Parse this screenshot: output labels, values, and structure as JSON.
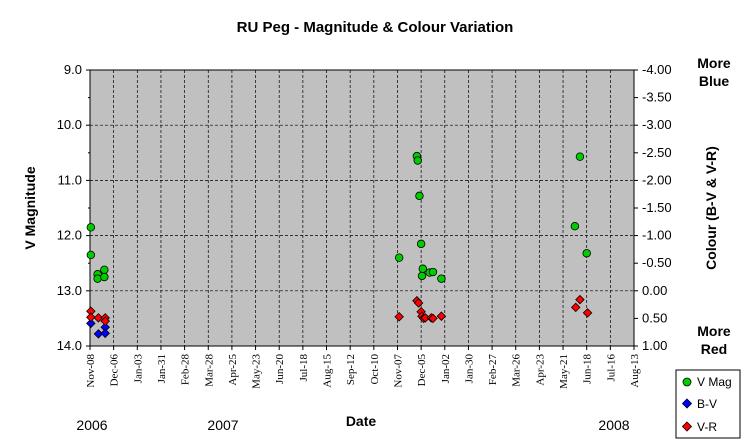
{
  "chart_data": {
    "type": "scatter",
    "title": "RU Peg - Magnitude & Colour Variation",
    "xlabel": "Date",
    "ylabel": "V Magnitude",
    "y2label": "Colour (B-V & V-R)",
    "ylim": [
      9.0,
      14.0
    ],
    "y_reversed": true,
    "yticks": [
      "9.0",
      "10.0",
      "11.0",
      "12.0",
      "13.0",
      "14.0"
    ],
    "y2lim": [
      -4.0,
      1.0
    ],
    "y2_reversed": true,
    "y2ticks": [
      "-4.00",
      "-3.50",
      "-3.00",
      "-2.50",
      "-2.00",
      "-1.50",
      "-1.00",
      "-0.50",
      "0.00",
      "0.50",
      "1.00"
    ],
    "xticks": [
      "Nov-08",
      "Dec-06",
      "Jan-03",
      "Jan-31",
      "Feb-28",
      "Mar-28",
      "Apr-25",
      "May-23",
      "Jun-20",
      "Jul-18",
      "Aug-15",
      "Sep-12",
      "Oct-10",
      "Nov-07",
      "Dec-05",
      "Jan-02",
      "Jan-30",
      "Feb-27",
      "Mar-26",
      "Apr-23",
      "May-21",
      "Jun-18",
      "Jul-16",
      "Aug-13"
    ],
    "years": [
      "2006",
      "2007",
      "2008"
    ],
    "annotations": {
      "top": [
        "More",
        "Blue"
      ],
      "bottom": [
        "More",
        "Red"
      ]
    },
    "grid": true,
    "legend_position": "bottom-right",
    "colors": {
      "plot_bg": "#c0c0c0",
      "v_mag": "#00cc00",
      "b_v": "#0000ff",
      "v_r": "#ff0000"
    },
    "series": [
      {
        "name": "V Mag",
        "axis": "left",
        "marker": "circle",
        "color": "#00cc00",
        "x": [
          1,
          1,
          9,
          9,
          17,
          17,
          366,
          387,
          388,
          390,
          392,
          393,
          394,
          402,
          406,
          416,
          574,
          580,
          588
        ],
        "y": [
          11.85,
          12.35,
          12.7,
          12.78,
          12.62,
          12.75,
          12.4,
          10.56,
          10.64,
          11.28,
          12.15,
          12.73,
          12.6,
          12.67,
          12.66,
          12.78,
          11.83,
          10.57,
          12.32
        ]
      },
      {
        "name": "B-V",
        "axis": "right",
        "marker": "diamond",
        "color": "#0000ff",
        "x": [
          1,
          10,
          18,
          18
        ],
        "y": [
          0.59,
          0.78,
          0.66,
          0.77
        ]
      },
      {
        "name": "V-R",
        "axis": "right",
        "marker": "diamond",
        "color": "#ff0000",
        "x": [
          1,
          1,
          10,
          18,
          18,
          366,
          387,
          389,
          392,
          393,
          395,
          397,
          404,
          406,
          416,
          575,
          580,
          589
        ],
        "y": [
          0.37,
          0.48,
          0.49,
          0.49,
          0.55,
          0.47,
          0.18,
          0.22,
          0.38,
          0.46,
          0.5,
          0.49,
          0.49,
          0.5,
          0.46,
          0.3,
          0.16,
          0.4
        ]
      }
    ]
  }
}
